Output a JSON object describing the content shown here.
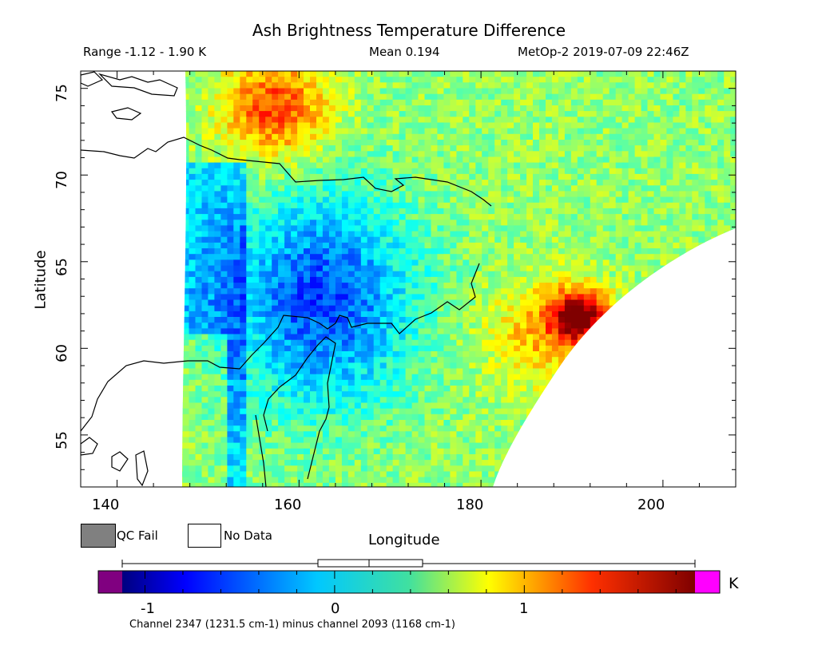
{
  "title": "Ash Brightness Temperature Difference",
  "stats": {
    "range": "Range -1.12 - 1.90 K",
    "mean": "Mean 0.194",
    "satellite_time": "MetOp-2 2019-07-09 22:46Z"
  },
  "axes": {
    "ylabel": "Latitude",
    "xlabel": "Longitude",
    "lat_ticks": [
      "75",
      "70",
      "65",
      "60",
      "55"
    ],
    "lon_ticks": [
      "140",
      "160",
      "180",
      "200"
    ]
  },
  "legend": {
    "qc_fail": "QC Fail",
    "no_data": "No Data",
    "qc_fail_color": "#808080",
    "no_data_color": "#ffffff"
  },
  "colorbar": {
    "unit": "K",
    "ticks": [
      "-1",
      "0",
      "1"
    ],
    "under_color": "#800080",
    "over_color": "#ff00ff",
    "caption": "Channel 2347 (1231.5 cm-1) minus channel 2093 (1168 cm-1)"
  },
  "map": {
    "lon_range": [
      136,
      208
    ],
    "lat_range": [
      52,
      76
    ],
    "value_range": [
      -1.12,
      1.9
    ],
    "mean": 0.194,
    "features": [
      {
        "region": "north-west edge (~150-160E, 71-76N)",
        "level": "warm, ~0.6 to 1.0 K (yellow-orange)"
      },
      {
        "region": "Chukchi Peninsula / interior (~150-172E, 56-70N)",
        "level": "cool, ~-0.8 to -0.3 K (blue)"
      },
      {
        "region": "south-east hotspot (~188-193E, 61-63N)",
        "level": "high, ~1.5 to 1.9 K (red)"
      }
    ]
  }
}
